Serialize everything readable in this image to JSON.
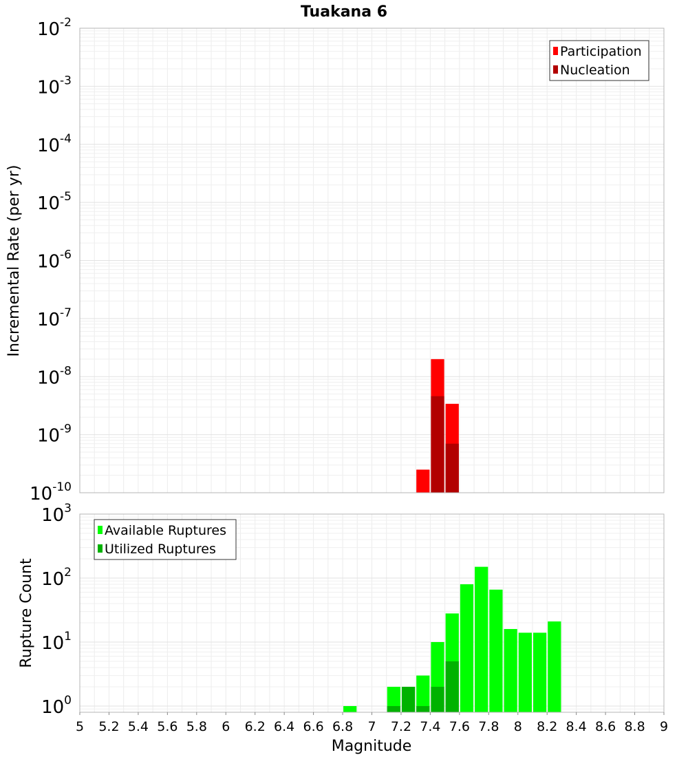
{
  "chart_data": [
    {
      "type": "bar",
      "title": "Tuakana 6",
      "xlabel": "",
      "ylabel": "Incremental Rate (per yr)",
      "y_scale": "log",
      "ylim": [
        1e-10,
        0.01
      ],
      "xlim": [
        5,
        9
      ],
      "grid": true,
      "legend_position": "top-right",
      "bar_width": 0.1,
      "y_ticks": [
        {
          "base": "10",
          "exp": "-10",
          "value": 1e-10
        },
        {
          "base": "10",
          "exp": "-9",
          "value": 1e-09
        },
        {
          "base": "10",
          "exp": "-8",
          "value": 1e-08
        },
        {
          "base": "10",
          "exp": "-7",
          "value": 1e-07
        },
        {
          "base": "10",
          "exp": "-6",
          "value": 1e-06
        },
        {
          "base": "10",
          "exp": "-5",
          "value": 1e-05
        },
        {
          "base": "10",
          "exp": "-4",
          "value": 0.0001
        },
        {
          "base": "10",
          "exp": "-3",
          "value": 0.001
        },
        {
          "base": "10",
          "exp": "-2",
          "value": 0.01
        }
      ],
      "series": [
        {
          "name": "Participation",
          "color": "#ff0000",
          "x": [
            7.35,
            7.45,
            7.55
          ],
          "values": [
            2.5e-10,
            2e-08,
            3.4e-09
          ]
        },
        {
          "name": "Nucleation",
          "color": "#b20000",
          "x": [
            7.45,
            7.55
          ],
          "values": [
            4.6e-09,
            7e-10
          ]
        }
      ]
    },
    {
      "type": "bar",
      "title": "",
      "xlabel": "Magnitude",
      "ylabel": "Rupture Count",
      "y_scale": "log",
      "ylim": [
        0.8,
        1000
      ],
      "xlim": [
        5,
        9
      ],
      "grid": true,
      "legend_position": "top-left",
      "bar_width": 0.1,
      "x_ticks": [
        "5",
        "5.2",
        "5.4",
        "5.6",
        "5.8",
        "6",
        "6.2",
        "6.4",
        "6.6",
        "6.8",
        "7",
        "7.2",
        "7.4",
        "7.6",
        "7.8",
        "8",
        "8.2",
        "8.4",
        "8.6",
        "8.8",
        "9"
      ],
      "y_ticks": [
        {
          "base": "10",
          "exp": "0",
          "value": 1
        },
        {
          "base": "10",
          "exp": "1",
          "value": 10
        },
        {
          "base": "10",
          "exp": "2",
          "value": 100
        },
        {
          "base": "10",
          "exp": "3",
          "value": 1000
        }
      ],
      "series": [
        {
          "name": "Available Ruptures",
          "color": "#00ff00",
          "x": [
            6.85,
            7.15,
            7.25,
            7.35,
            7.45,
            7.55,
            7.65,
            7.75,
            7.85,
            7.95,
            8.05,
            8.15,
            8.25
          ],
          "values": [
            1,
            2,
            2,
            3,
            10,
            28,
            80,
            150,
            66,
            16,
            14,
            14,
            21
          ]
        },
        {
          "name": "Utilized Ruptures",
          "color": "#00b200",
          "x": [
            7.15,
            7.25,
            7.35,
            7.45,
            7.55
          ],
          "values": [
            1,
            2,
            1,
            2,
            5
          ]
        }
      ]
    }
  ]
}
